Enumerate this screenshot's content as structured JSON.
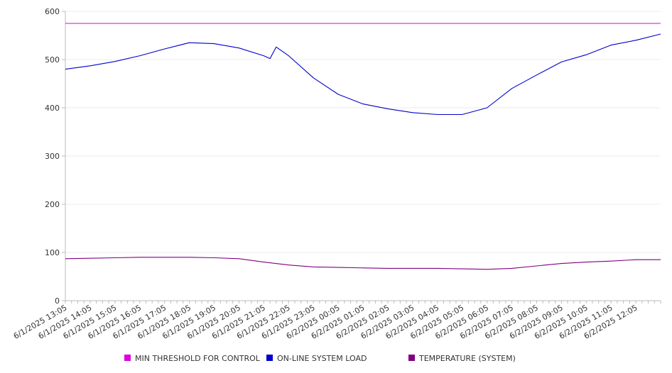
{
  "chart_data": {
    "type": "line",
    "title": "",
    "xlabel": "",
    "ylabel": "",
    "ylim": [
      0,
      600
    ],
    "y_ticks": [
      0,
      100,
      200,
      300,
      400,
      500,
      600
    ],
    "grid": "horizontal",
    "legend_position": "bottom",
    "x_tick_labels": [
      "6/1/2025 13:05",
      "6/1/2025 14:05",
      "6/1/2025 15:05",
      "6/1/2025 16:05",
      "6/1/2025 17:05",
      "6/1/2025 18:05",
      "6/1/2025 19:05",
      "6/1/2025 20:05",
      "6/1/2025 21:05",
      "6/1/2025 22:05",
      "6/1/2025 23:05",
      "6/2/2025 00:05",
      "6/2/2025 01:05",
      "6/2/2025 02:05",
      "6/2/2025 03:05",
      "6/2/2025 04:05",
      "6/2/2025 05:05",
      "6/2/2025 06:05",
      "6/2/2025 07:05",
      "6/2/2025 08:05",
      "6/2/2025 09:05",
      "6/2/2025 10:05",
      "6/2/2025 11:05",
      "6/2/2025 12:05"
    ],
    "x_start": "6/1/2025 13:05",
    "x_end": "6/2/2025 13:05",
    "series": [
      {
        "name": "MIN THRESHOLD FOR CONTROL",
        "color": "#dd00dd",
        "x": [
          "6/1/2025 13:05",
          "6/2/2025 13:05"
        ],
        "values": [
          575,
          575
        ]
      },
      {
        "name": "ON-LINE SYSTEM LOAD",
        "color": "#0000cc",
        "x": [
          "6/1/2025 13:05",
          "6/1/2025 14:05",
          "6/1/2025 15:05",
          "6/1/2025 16:05",
          "6/1/2025 17:05",
          "6/1/2025 18:05",
          "6/1/2025 19:05",
          "6/1/2025 20:05",
          "6/1/2025 21:05",
          "6/1/2025 21:20",
          "6/1/2025 21:35",
          "6/1/2025 22:05",
          "6/1/2025 23:05",
          "6/2/2025 00:05",
          "6/2/2025 01:05",
          "6/2/2025 02:05",
          "6/2/2025 03:05",
          "6/2/2025 04:05",
          "6/2/2025 05:05",
          "6/2/2025 06:05",
          "6/2/2025 07:05",
          "6/2/2025 08:05",
          "6/2/2025 09:05",
          "6/2/2025 10:05",
          "6/2/2025 11:05",
          "6/2/2025 12:05",
          "6/2/2025 13:05"
        ],
        "values": [
          480,
          487,
          496,
          508,
          522,
          535,
          533,
          524,
          508,
          502,
          526,
          508,
          462,
          428,
          408,
          398,
          390,
          386,
          386,
          400,
          440,
          468,
          495,
          510,
          530,
          540,
          553
        ]
      },
      {
        "name": "TEMPERATURE (SYSTEM)",
        "color": "#800080",
        "x": [
          "6/1/2025 13:05",
          "6/1/2025 14:05",
          "6/1/2025 15:05",
          "6/1/2025 16:05",
          "6/1/2025 17:05",
          "6/1/2025 18:05",
          "6/1/2025 19:05",
          "6/1/2025 20:05",
          "6/1/2025 21:05",
          "6/1/2025 22:05",
          "6/1/2025 23:05",
          "6/2/2025 00:05",
          "6/2/2025 01:05",
          "6/2/2025 02:05",
          "6/2/2025 03:05",
          "6/2/2025 04:05",
          "6/2/2025 05:05",
          "6/2/2025 06:05",
          "6/2/2025 07:05",
          "6/2/2025 08:05",
          "6/2/2025 09:05",
          "6/2/2025 10:05",
          "6/2/2025 11:05",
          "6/2/2025 12:05",
          "6/2/2025 13:05"
        ],
        "values": [
          87,
          88,
          89,
          90,
          90,
          90,
          89,
          87,
          80,
          74,
          70,
          69,
          68,
          67,
          67,
          67,
          66,
          65,
          67,
          72,
          77,
          80,
          82,
          85,
          85
        ]
      }
    ]
  }
}
